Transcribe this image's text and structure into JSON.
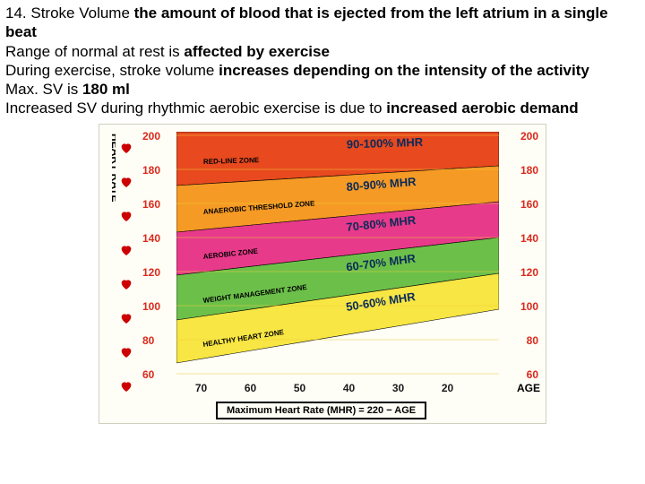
{
  "text": {
    "l1a": "14. Stroke Volume ",
    "l1b": "the amount of blood that is ejected from the left atrium in a single beat",
    "l2a": "Range of normal at rest is ",
    "l2b": "affected by exercise",
    "l3a": "During exercise, stroke volume ",
    "l3b": "increases depending on the intensity of the activity",
    "l4a": "Max. SV is ",
    "l4b": "180 ml",
    "l5a": "Increased SV during rhythmic aerobic exercise is due to ",
    "l5b": "increased aerobic demand"
  },
  "chart": {
    "hr_label": "HEART RATE",
    "left_ticks": [
      "200",
      "180",
      "160",
      "140",
      "120",
      "100",
      "80",
      "60"
    ],
    "right_ticks": [
      "200",
      "180",
      "160",
      "140",
      "120",
      "100",
      "80",
      "60"
    ],
    "ages": [
      "70",
      "60",
      "50",
      "40",
      "30",
      "20"
    ],
    "age_label": "AGE",
    "formula": "Maximum Heart Rate (MHR)  =  220 − AGE",
    "zones": [
      {
        "color": "#e8491e",
        "name": "RED-LINE ZONE",
        "pct": "90-100% MHR",
        "top_l": 0,
        "top_r": 0,
        "bot_l": 60,
        "bot_r": 38
      },
      {
        "color": "#f59a24",
        "name": "ANAEROBIC THRESHOLD ZONE",
        "pct": "80-90% MHR",
        "top_l": 60,
        "top_r": 38,
        "bot_l": 112,
        "bot_r": 78
      },
      {
        "color": "#e83a8a",
        "name": "AEROBIC ZONE",
        "pct": "70-80% MHR",
        "top_l": 112,
        "top_r": 78,
        "bot_l": 160,
        "bot_r": 118
      },
      {
        "color": "#6cc04a",
        "name": "WEIGHT MANAGEMENT ZONE",
        "pct": "60-70% MHR",
        "top_l": 160,
        "top_r": 118,
        "bot_l": 210,
        "bot_r": 158
      },
      {
        "color": "#f7e643",
        "name": "HEALTHY HEART ZONE",
        "pct": "50-60% MHR",
        "top_l": 210,
        "top_r": 158,
        "bot_l": 258,
        "bot_r": 198
      }
    ],
    "grid_color": "#f0cf3a",
    "bg": "#fefdf6"
  }
}
